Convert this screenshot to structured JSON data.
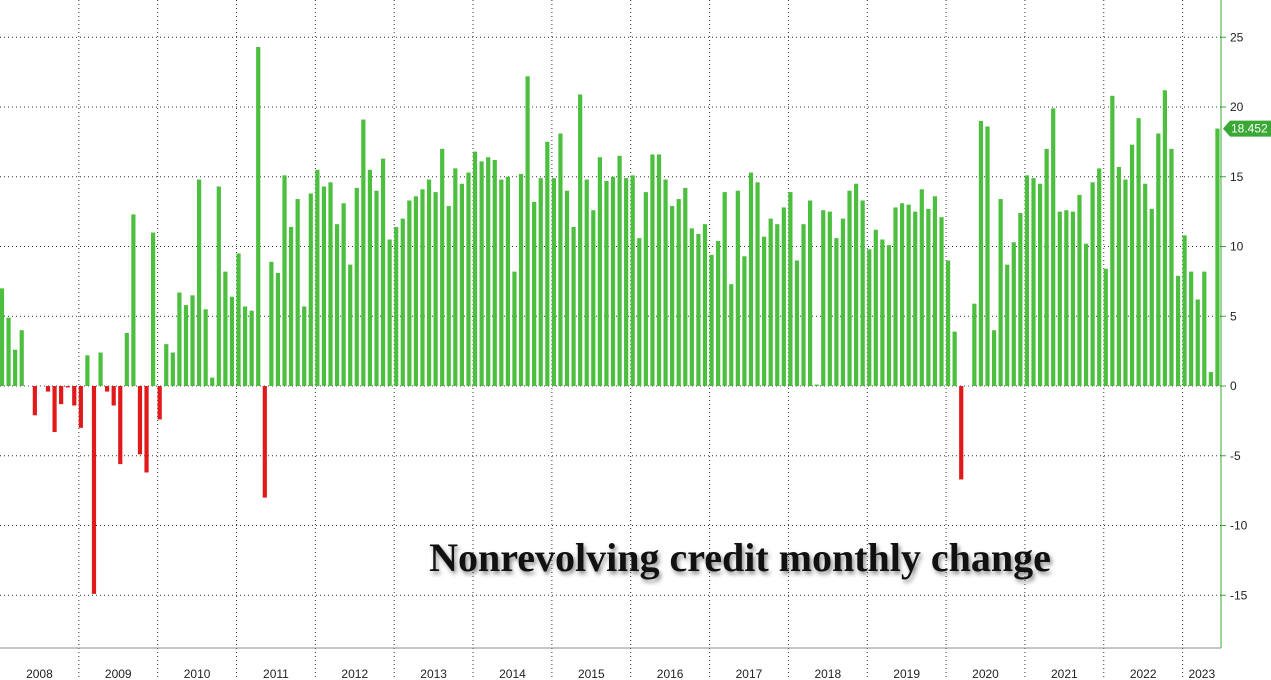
{
  "chart_data": {
    "type": "bar",
    "title": "Nonrevolving credit monthly change",
    "xlabel": "",
    "ylabel": "",
    "ylim": [
      -19,
      28
    ],
    "yticks": [
      25,
      20,
      15,
      10,
      5,
      0,
      -5,
      -10,
      -15
    ],
    "years": [
      "2008",
      "2009",
      "2010",
      "2011",
      "2012",
      "2013",
      "2014",
      "2015",
      "2016",
      "2017",
      "2018",
      "2019",
      "2020",
      "2021",
      "2022",
      "2023"
    ],
    "x_start": "2008-01",
    "grid": "dotted",
    "positive_color": "#4cbf3f",
    "negative_color": "#e01a1a",
    "last_value_label": "18.452",
    "last_value_color": "#3aa834",
    "values": [
      7.0,
      4.9,
      2.6,
      4.0,
      0.0,
      -2.1,
      0.0,
      -0.4,
      -3.3,
      -1.3,
      -0.1,
      -1.4,
      -3.0,
      2.2,
      -14.9,
      2.4,
      -0.4,
      -1.4,
      -5.6,
      3.8,
      12.3,
      -4.9,
      -6.2,
      11.0,
      -2.4,
      3.0,
      2.4,
      6.7,
      5.8,
      6.5,
      14.8,
      5.5,
      0.6,
      14.3,
      8.2,
      6.4,
      9.5,
      5.7,
      5.4,
      24.3,
      -8.0,
      8.9,
      8.1,
      15.1,
      11.4,
      13.4,
      5.7,
      13.8,
      15.5,
      14.3,
      14.6,
      11.6,
      13.1,
      8.7,
      14.2,
      19.1,
      15.5,
      14.0,
      16.3,
      10.5,
      11.4,
      12.0,
      13.3,
      13.6,
      14.1,
      14.8,
      13.9,
      17.0,
      12.9,
      15.6,
      14.5,
      15.3,
      16.8,
      16.1,
      16.4,
      16.2,
      14.8,
      15.0,
      8.2,
      15.2,
      22.2,
      13.2,
      14.9,
      17.5,
      14.9,
      18.1,
      14.0,
      11.4,
      20.9,
      14.8,
      12.6,
      16.4,
      14.7,
      15.0,
      16.5,
      14.9,
      15.1,
      10.6,
      13.9,
      16.6,
      16.6,
      14.8,
      12.9,
      13.4,
      14.2,
      11.3,
      10.9,
      11.6,
      9.4,
      10.4,
      13.9,
      7.3,
      14.0,
      9.3,
      15.3,
      14.6,
      10.7,
      12.0,
      11.6,
      12.8,
      13.9,
      9.0,
      11.6,
      13.3,
      0.1,
      12.6,
      12.5,
      10.6,
      12.0,
      14.0,
      14.5,
      13.3,
      9.8,
      11.2,
      10.5,
      10.1,
      12.8,
      13.1,
      13.0,
      12.5,
      14.1,
      12.7,
      13.6,
      12.1,
      9.0,
      3.9,
      -6.7,
      0.0,
      5.9,
      19.0,
      18.6,
      4.0,
      13.4,
      8.7,
      10.3,
      12.4,
      15.1,
      14.9,
      14.5,
      17.0,
      19.9,
      12.5,
      12.6,
      12.5,
      13.7,
      10.2,
      14.6,
      15.6,
      8.4,
      20.8,
      15.7,
      14.8,
      17.3,
      19.2,
      14.5,
      12.7,
      18.1,
      21.2,
      17.0,
      7.9,
      10.8,
      8.2,
      6.2,
      8.2,
      1.0,
      18.452
    ]
  }
}
